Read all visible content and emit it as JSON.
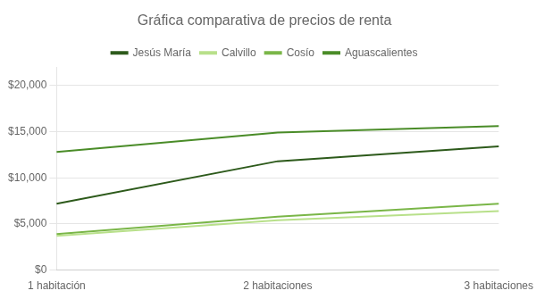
{
  "chart_data": {
    "type": "line",
    "title": "Gráfica comparativa de precios de renta",
    "categories": [
      "1 habitación",
      "2 habitaciones",
      "3 habitaciones"
    ],
    "series": [
      {
        "name": "Jesús María",
        "color": "#2d5a1b",
        "values": [
          7200,
          11800,
          13400
        ]
      },
      {
        "name": "Calvillo",
        "color": "#b8e08a",
        "values": [
          3700,
          5400,
          6400
        ]
      },
      {
        "name": "Cosío",
        "color": "#7ab648",
        "values": [
          3900,
          5800,
          7200
        ]
      },
      {
        "name": "Aguascalientes",
        "color": "#4a8c28",
        "values": [
          12800,
          14900,
          15600
        ]
      }
    ],
    "ylim": [
      0,
      22000
    ],
    "yticks": [
      {
        "value": 0,
        "label": "$0"
      },
      {
        "value": 5000,
        "label": "$5,000"
      },
      {
        "value": 10000,
        "label": "$10,000"
      },
      {
        "value": 15000,
        "label": "$15,000"
      },
      {
        "value": 20000,
        "label": "$20,000"
      }
    ],
    "grid": true,
    "legend": "top"
  }
}
